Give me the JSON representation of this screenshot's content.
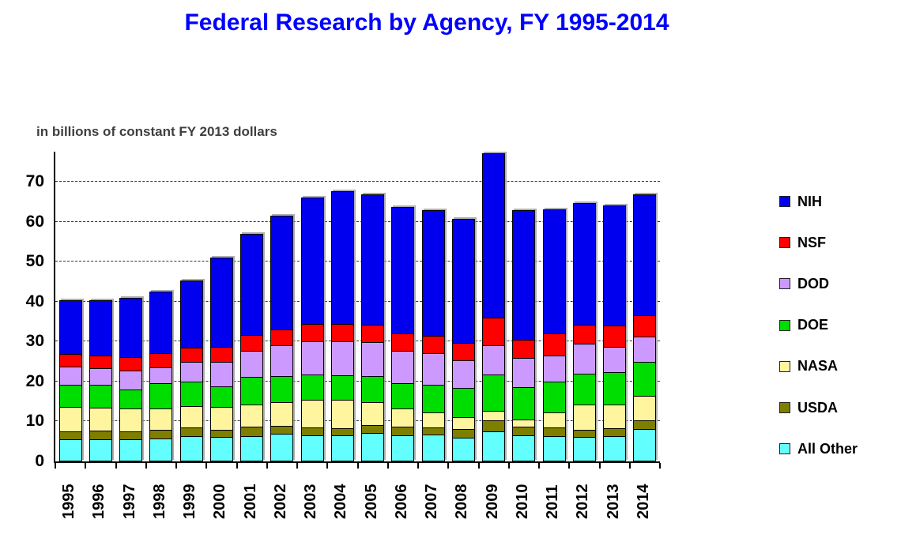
{
  "title": "Federal Research by Agency, FY 1995-2014",
  "title_color": "#0000FF",
  "subtitle": "in billions of constant FY 2013 dollars",
  "legend": [
    "NIH",
    "NSF",
    "DOD",
    "DOE",
    "NASA",
    "USDA",
    "All Other"
  ],
  "chart_data": {
    "type": "bar",
    "stacked": true,
    "title": "Federal Research by Agency, FY 1995-2014",
    "units_label": "in billions of constant FY 2013 dollars",
    "xlabel": "",
    "ylabel": "",
    "categories": [
      "1995",
      "1996",
      "1997",
      "1998",
      "1999",
      "2000",
      "2001",
      "2002",
      "2003",
      "2004",
      "2005",
      "2006",
      "2007",
      "2008",
      "2009",
      "2010",
      "2011",
      "2012",
      "2013",
      "2014"
    ],
    "yticks": [
      0,
      10,
      20,
      30,
      40,
      50,
      60,
      70
    ],
    "ylim": [
      0,
      77.5
    ],
    "grid": "horizontal-dashed",
    "legend_position": "right",
    "legend_order_top_to_bottom": [
      "NIH",
      "NSF",
      "DOD",
      "DOE",
      "NASA",
      "USDA",
      "All Other"
    ],
    "stacking_order_bottom_to_top": [
      "All Other",
      "USDA",
      "NASA",
      "DOE",
      "DOD",
      "NSF",
      "NIH"
    ],
    "series": [
      {
        "name": "All Other",
        "color": "#63FFFF",
        "values": [
          5.5,
          5.6,
          5.6,
          5.7,
          6.3,
          6.1,
          6.4,
          6.9,
          6.6,
          6.6,
          7.1,
          6.6,
          6.7,
          6.0,
          7.5,
          6.5,
          6.4,
          6.1,
          6.3,
          8.2
        ]
      },
      {
        "name": "USDA",
        "color": "#7E7E00",
        "values": [
          2.1,
          2.1,
          2.0,
          2.2,
          2.3,
          1.8,
          2.3,
          2.0,
          2.0,
          1.8,
          2.1,
          2.1,
          1.9,
          2.2,
          2.8,
          2.3,
          2.1,
          1.9,
          2.1,
          2.0
        ]
      },
      {
        "name": "NASA",
        "color": "#FFF59E",
        "values": [
          6.0,
          5.8,
          5.6,
          5.4,
          5.3,
          5.8,
          5.5,
          6.0,
          6.9,
          7.1,
          5.7,
          4.5,
          3.7,
          2.8,
          2.4,
          1.7,
          3.8,
          6.2,
          5.8,
          6.2
        ]
      },
      {
        "name": "DOE",
        "color": "#00DD00",
        "values": [
          5.5,
          5.6,
          4.8,
          6.2,
          6.0,
          5.1,
          7.0,
          6.5,
          6.3,
          6.1,
          6.5,
          6.3,
          6.8,
          7.3,
          9.1,
          8.0,
          7.6,
          7.7,
          8.1,
          8.5
        ]
      },
      {
        "name": "DOD",
        "color": "#CC99FF",
        "values": [
          4.6,
          4.3,
          4.8,
          4.1,
          5.1,
          6.2,
          6.4,
          7.6,
          8.2,
          8.4,
          8.4,
          8.1,
          8.0,
          7.1,
          7.2,
          7.4,
          6.6,
          7.5,
          6.4,
          6.4
        ]
      },
      {
        "name": "NSF",
        "color": "#FF0000",
        "values": [
          3.2,
          3.1,
          3.4,
          3.6,
          3.4,
          3.7,
          4.1,
          4.0,
          4.5,
          4.5,
          4.4,
          4.4,
          4.4,
          4.2,
          7.0,
          4.6,
          5.5,
          4.9,
          5.3,
          5.3
        ]
      },
      {
        "name": "NIH",
        "color": "#0000EE",
        "values": [
          13.4,
          13.8,
          14.7,
          15.3,
          16.9,
          22.4,
          25.2,
          28.5,
          31.5,
          33.1,
          32.6,
          31.6,
          31.4,
          31.2,
          41.2,
          32.3,
          31.0,
          30.3,
          30.1,
          30.2
        ]
      }
    ],
    "bar_totals": [
      40.3,
      40.3,
      40.9,
      42.5,
      45.3,
      51.1,
      56.9,
      61.5,
      66.0,
      67.6,
      66.8,
      63.6,
      62.9,
      60.8,
      77.2,
      62.8,
      63.0,
      64.6,
      64.1,
      66.8
    ]
  }
}
